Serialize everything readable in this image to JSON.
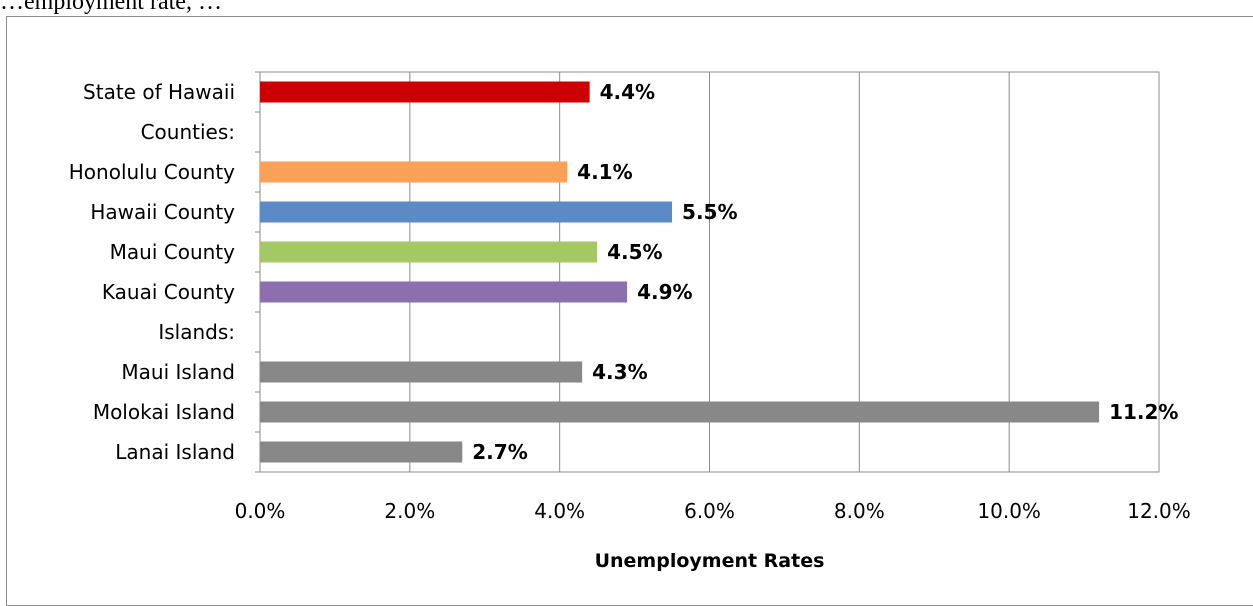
{
  "header_text": "…employment rate, …",
  "chart_data": {
    "type": "bar",
    "orientation": "horizontal",
    "categories": [
      "State of Hawaii",
      "Counties:",
      "Honolulu County",
      "Hawaii County",
      "Maui County",
      "Kauai County",
      "Islands:",
      "Maui Island",
      "Molokai Island",
      "Lanai Island"
    ],
    "values": [
      4.4,
      null,
      4.1,
      5.5,
      4.5,
      4.9,
      null,
      4.3,
      11.2,
      2.7
    ],
    "value_labels": [
      "4.4%",
      "",
      "4.1%",
      "5.5%",
      "4.5%",
      "4.9%",
      "",
      "4.3%",
      "11.2%",
      "2.7%"
    ],
    "colors": [
      "#cc0000",
      null,
      "#f9a257",
      "#5b8ac7",
      "#a4c863",
      "#8e6fae",
      null,
      "#888888",
      "#888888",
      "#888888"
    ],
    "xlabel": "Unemployment Rates",
    "ylabel": "",
    "xlim": [
      0,
      12
    ],
    "xticks": [
      "0.0%",
      "2.0%",
      "4.0%",
      "6.0%",
      "8.0%",
      "10.0%",
      "12.0%"
    ],
    "grid": "vertical",
    "legend": "none"
  }
}
